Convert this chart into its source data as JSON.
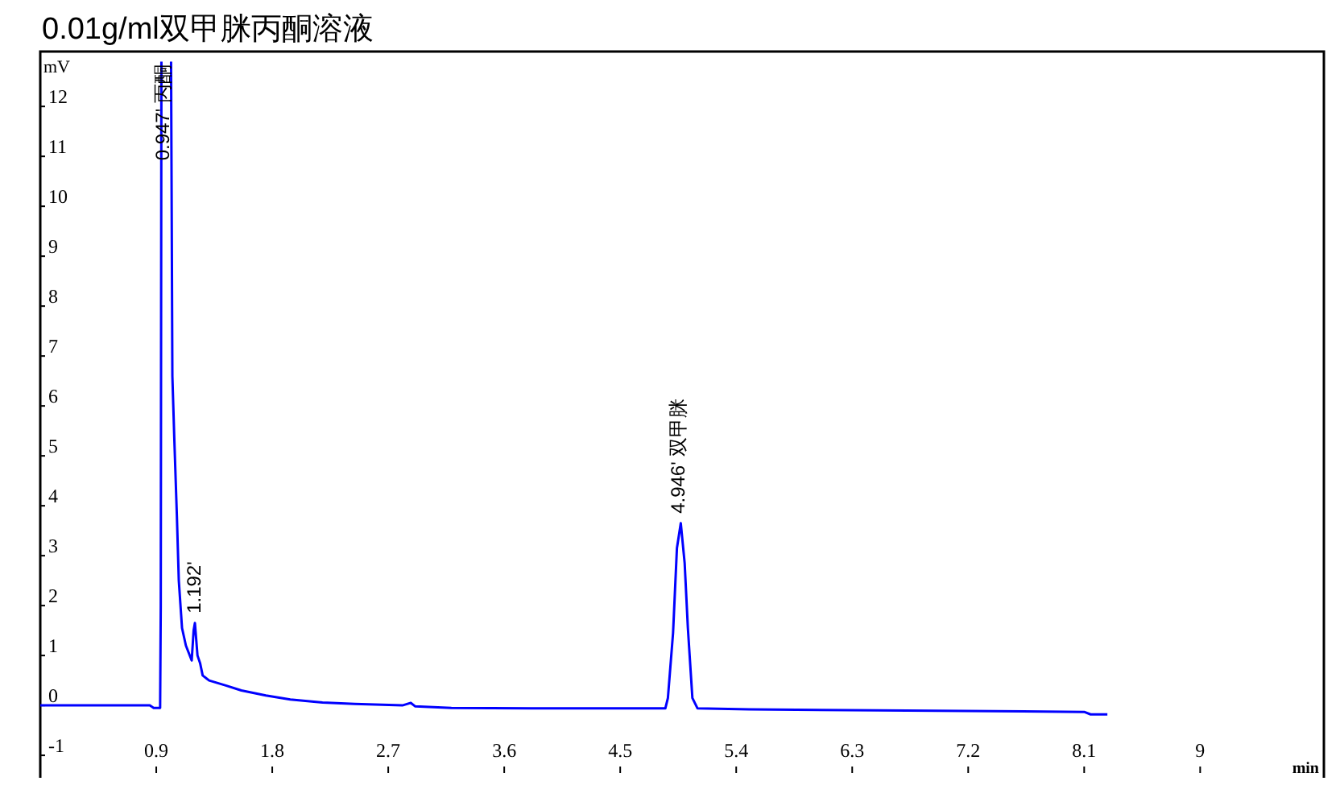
{
  "chart_data": {
    "type": "line",
    "title": "0.01g/ml双甲脒丙酮溶液",
    "xlabel": "min",
    "ylabel": "mV",
    "xlim": [
      0,
      9.96
    ],
    "ylim": [
      -1.45,
      13.1
    ],
    "xticks": [
      0.9,
      1.8,
      2.7,
      3.6,
      4.5,
      5.4,
      6.3,
      7.2,
      8.1,
      9
    ],
    "yticks": [
      -1,
      0,
      1,
      2,
      3,
      4,
      5,
      6,
      7,
      8,
      9,
      10,
      11,
      12
    ],
    "grid": false,
    "marker": "none",
    "line_style": "solid",
    "series": [
      {
        "color": "#0000ff",
        "x": [
          0,
          0.5,
          0.85,
          0.88,
          0.93,
          0.935,
          0.94,
          0.95,
          1.015,
          1.025,
          1.04,
          1.06,
          1.075,
          1.1,
          1.13,
          1.175,
          1.19,
          1.2,
          1.22,
          1.24,
          1.26,
          1.31,
          1.44,
          1.56,
          1.75,
          1.94,
          2.19,
          2.44,
          2.81,
          2.875,
          2.91,
          3.19,
          3.81,
          4.5,
          4.85,
          4.87,
          4.91,
          4.94,
          4.97,
          5.0,
          5.025,
          5.06,
          5.1,
          5.5,
          6.5,
          8.1,
          8.15,
          8.28
        ],
        "values": [
          0,
          0,
          0,
          -0.05,
          -0.05,
          2,
          12.9,
          null,
          12.9,
          6.6,
          5.35,
          3.8,
          2.5,
          1.55,
          1.2,
          0.9,
          1.5,
          1.65,
          1.0,
          0.85,
          0.6,
          0.5,
          0.4,
          0.3,
          0.2,
          0.12,
          0.06,
          0.03,
          0,
          0.05,
          -0.02,
          -0.05,
          -0.06,
          -0.06,
          -0.06,
          0.15,
          1.45,
          3.15,
          3.65,
          2.85,
          1.55,
          0.15,
          -0.06,
          -0.08,
          -0.1,
          -0.13,
          -0.18,
          -0.18
        ]
      }
    ],
    "annotations": [
      {
        "text": "0.947' 丙酮",
        "x": 0.947
      },
      {
        "text": "1.192'",
        "x": 1.192,
        "y": 1.65
      },
      {
        "text": "4.946' 双甲脒",
        "x": 4.946,
        "y": 3.65
      }
    ]
  }
}
